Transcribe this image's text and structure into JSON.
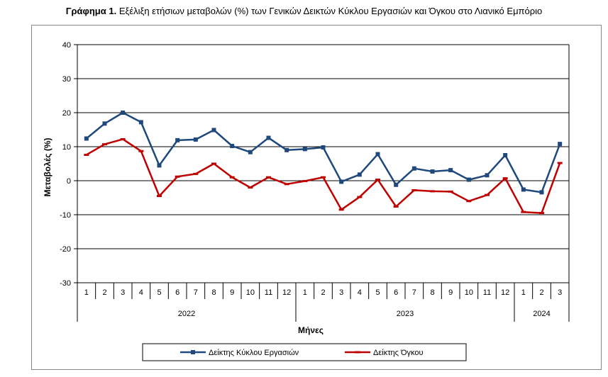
{
  "title": {
    "prefix": "Γράφημα 1.",
    "text": "Εξέλιξη ετήσιων μεταβολών (%) των Γενικών Δεικτών Κύκλου Εργασιών και Όγκου στο Λιανικό Εμπόριο"
  },
  "chart_data": {
    "type": "line",
    "ylabel": "Μεταβολές  (%)",
    "xlabel": "Μήνες",
    "ylim": [
      -30,
      40
    ],
    "yticks": [
      -30,
      -20,
      -10,
      0,
      10,
      20,
      30,
      40
    ],
    "grid": "horizontal",
    "legend_position": "bottom",
    "categories": [
      "1",
      "2",
      "3",
      "4",
      "5",
      "6",
      "7",
      "8",
      "9",
      "10",
      "11",
      "12",
      "1",
      "2",
      "3",
      "4",
      "5",
      "6",
      "7",
      "8",
      "9",
      "10",
      "11",
      "12",
      "1",
      "2",
      "3"
    ],
    "years": [
      {
        "label": "2022",
        "count": 12
      },
      {
        "label": "2023",
        "count": 12
      },
      {
        "label": "2024",
        "count": 3
      }
    ],
    "series": [
      {
        "name": "Δείκτης Κύκλου Εργασιών",
        "color": "#1f497d",
        "marker": "square",
        "values": [
          12.4,
          16.8,
          20.0,
          17.2,
          4.5,
          11.9,
          12.1,
          14.9,
          10.2,
          8.4,
          12.6,
          9.0,
          9.3,
          9.8,
          -0.3,
          1.8,
          7.8,
          -1.2,
          3.6,
          2.7,
          3.1,
          0.3,
          1.6,
          7.5,
          -2.6,
          -3.4,
          10.8
        ]
      },
      {
        "name": "Δείκτης Όγκου",
        "color": "#c00000",
        "marker": "dash",
        "values": [
          7.6,
          10.7,
          12.2,
          8.7,
          -4.5,
          1.2,
          2.0,
          5.0,
          1.0,
          -2.0,
          1.0,
          -1.0,
          -0.1,
          1.0,
          -8.5,
          -4.8,
          0.3,
          -7.6,
          -2.8,
          -3.1,
          -3.2,
          -6.0,
          -4.2,
          0.7,
          -9.2,
          -9.5,
          5.2
        ]
      }
    ]
  }
}
